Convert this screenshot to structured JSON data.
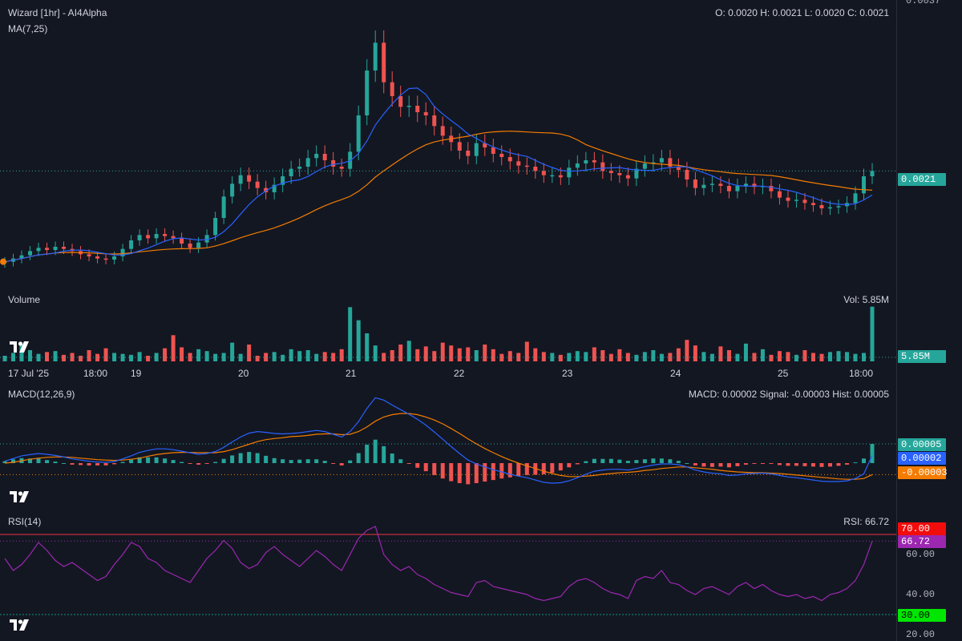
{
  "header": {
    "symbol": "Wizard [1hr] - AI4Alpha",
    "ma_label": "MA(7,25)",
    "ohlc": "O: 0.0020 H: 0.0021 L: 0.0020 C: 0.0021",
    "top_tick": "0.0037"
  },
  "price_panel": {
    "last_price_label": "0.0021",
    "colors": {
      "up": "#26a69a",
      "down": "#ef5350",
      "ma7": "#2962ff",
      "ma25": "#f57c00"
    }
  },
  "volume_panel": {
    "title": "Volume",
    "vol_text": "Vol: 5.85M",
    "last_label": "5.85M"
  },
  "x_axis": {
    "labels": [
      "17 Jul '25",
      "18:00",
      "19",
      "20",
      "21",
      "22",
      "23",
      "24",
      "25",
      "18:00"
    ]
  },
  "macd_panel": {
    "title": "MACD(12,26,9)",
    "values_text": "MACD: 0.00002 Signal: -0.00003 Hist: 0.00005",
    "badges": {
      "hist": "0.00005",
      "macd": "0.00002",
      "signal": "-0.00003"
    }
  },
  "rsi_panel": {
    "title": "RSI(14)",
    "value_text": "RSI: 66.72",
    "ticks": [
      "60.00",
      "40.00",
      "20.00"
    ],
    "badges": {
      "upper": "70.00",
      "current": "66.72",
      "lower": "30.00"
    }
  },
  "chart_data": [
    {
      "type": "candlestick",
      "title": "Wizard [1hr] - AI4Alpha",
      "x_labels": [
        "17 Jul '25",
        "18:00",
        "19",
        "20",
        "21",
        "22",
        "23",
        "24",
        "25",
        "18:00"
      ],
      "last_price": 0.0021,
      "ohlc_last": {
        "open": 0.002,
        "high": 0.0021,
        "low": 0.002,
        "close": 0.0021
      },
      "indicators": [
        "MA(7)",
        "MA(25)"
      ],
      "close_series": [
        0.00125,
        0.00128,
        0.00131,
        0.00135,
        0.00138,
        0.00136,
        0.00139,
        0.00137,
        0.00135,
        0.00132,
        0.0013,
        0.00128,
        0.00127,
        0.0013,
        0.00137,
        0.00145,
        0.0015,
        0.00147,
        0.00151,
        0.00149,
        0.00147,
        0.00142,
        0.00138,
        0.00143,
        0.0015,
        0.00166,
        0.00186,
        0.00198,
        0.00206,
        0.002,
        0.00194,
        0.0019,
        0.00197,
        0.00205,
        0.00212,
        0.00214,
        0.00222,
        0.00226,
        0.0022,
        0.00214,
        0.00212,
        0.00228,
        0.00262,
        0.00304,
        0.0033,
        0.00293,
        0.0028,
        0.0027,
        0.00271,
        0.00265,
        0.00262,
        0.00252,
        0.00243,
        0.00237,
        0.00229,
        0.00224,
        0.00236,
        0.00232,
        0.00226,
        0.00223,
        0.00219,
        0.00215,
        0.00214,
        0.0021,
        0.00206,
        0.00206,
        0.00204,
        0.00213,
        0.00217,
        0.0022,
        0.00218,
        0.0021,
        0.00208,
        0.00206,
        0.00203,
        0.00212,
        0.00217,
        0.00218,
        0.00222,
        0.00214,
        0.00211,
        0.00202,
        0.00194,
        0.00197,
        0.00198,
        0.00196,
        0.00191,
        0.00196,
        0.00198,
        0.00195,
        0.00196,
        0.00191,
        0.00185,
        0.00182,
        0.00183,
        0.0018,
        0.00178,
        0.00175,
        0.00176,
        0.00177,
        0.0018,
        0.00189,
        0.00205,
        0.0021
      ]
    },
    {
      "type": "bar",
      "title": "Volume",
      "last_value": "5.85M",
      "values_millions": [
        0.6,
        0.9,
        1.8,
        1.2,
        0.8,
        1.0,
        1.1,
        0.7,
        0.9,
        0.6,
        1.2,
        0.8,
        1.4,
        0.9,
        0.8,
        0.7,
        1.0,
        0.6,
        0.9,
        1.4,
        2.8,
        1.5,
        0.9,
        1.3,
        1.1,
        0.8,
        0.9,
        2.0,
        0.8,
        1.8,
        0.6,
        0.9,
        1.0,
        0.7,
        1.3,
        1.1,
        1.2,
        0.8,
        1.0,
        0.9,
        1.3,
        5.8,
        4.4,
        3.0,
        1.7,
        0.9,
        1.2,
        1.8,
        2.2,
        1.3,
        1.6,
        1.1,
        2.0,
        1.7,
        1.4,
        1.5,
        1.2,
        1.8,
        1.3,
        0.8,
        1.1,
        0.9,
        2.1,
        1.4,
        1.0,
        0.9,
        0.7,
        0.9,
        1.1,
        1.0,
        1.5,
        1.2,
        0.8,
        1.3,
        0.9,
        0.7,
        1.0,
        1.2,
        0.8,
        0.9,
        1.4,
        2.3,
        1.7,
        1.0,
        0.8,
        1.6,
        1.2,
        0.8,
        1.9,
        0.9,
        1.3,
        0.7,
        1.1,
        1.0,
        0.7,
        1.2,
        0.9,
        0.8,
        1.0,
        1.1,
        1.0,
        0.8,
        0.9,
        5.85
      ]
    },
    {
      "type": "line",
      "title": "MACD(12,26,9)",
      "last": {
        "macd": 2e-05,
        "signal": -3e-05,
        "hist": 5e-05
      },
      "series": [
        {
          "name": "MACD",
          "values": [
            5e-06,
            1.2e-05,
            1.9e-05,
            2.2e-05,
            2.5e-05,
            2.3e-05,
            2e-05,
            1.6e-05,
            1.1e-05,
            8e-06,
            5e-06,
            3e-06,
            2e-06,
            4e-06,
            1.1e-05,
            1.9e-05,
            2.8e-05,
            3.3e-05,
            3.7e-05,
            3.7e-05,
            3.5e-05,
            3.1e-05,
            2.7e-05,
            2.3e-05,
            2.5e-05,
            3e-05,
            4.1e-05,
            5.5e-05,
            6.8e-05,
            7.8e-05,
            8.2e-05,
            8e-05,
            7.7e-05,
            7.6e-05,
            7.7e-05,
            7.9e-05,
            8.2e-05,
            8.5e-05,
            8.2e-05,
            7.5e-05,
            6.8e-05,
            8.2e-05,
            0.000108,
            0.000142,
            0.00017,
            0.000164,
            0.000151,
            0.000139,
            0.000127,
            0.000114,
            9.9e-05,
            8.1e-05,
            6.2e-05,
            4.3e-05,
            2.5e-05,
            8e-06,
            -2e-06,
            -1e-05,
            -1.7e-05,
            -2.3e-05,
            -2.9e-05,
            -3.4e-05,
            -3.8e-05,
            -4.4e-05,
            -5e-05,
            -5.2e-05,
            -5.1e-05,
            -4.6e-05,
            -3.8e-05,
            -2.9e-05,
            -2.1e-05,
            -1.8e-05,
            -1.6e-05,
            -1.6e-05,
            -1.8e-05,
            -1.4e-05,
            -9e-06,
            -5e-06,
            -2e-06,
            -2e-06,
            -4e-06,
            -1e-05,
            -1.8e-05,
            -2.3e-05,
            -2.6e-05,
            -2.8e-05,
            -3.2e-05,
            -3.1e-05,
            -2.8e-05,
            -2.7e-05,
            -2.6e-05,
            -2.8e-05,
            -3.2e-05,
            -3.6e-05,
            -3.8e-05,
            -4.1e-05,
            -4.4e-05,
            -4.7e-05,
            -4.8e-05,
            -4.8e-05,
            -4.6e-05,
            -4e-05,
            -2.8e-05,
            2e-05
          ]
        },
        {
          "name": "Signal",
          "values": [
            0.0,
            2e-06,
            6e-06,
            1e-05,
            1.3e-05,
            1.5e-05,
            1.6e-05,
            1.6e-05,
            1.5e-05,
            1.3e-05,
            1.1e-05,
            9e-06,
            8e-06,
            7e-06,
            8e-06,
            1e-05,
            1.3e-05,
            1.8e-05,
            2.2e-05,
            2.5e-05,
            2.7e-05,
            2.8e-05,
            2.8e-05,
            2.7e-05,
            2.7e-05,
            2.7e-05,
            3e-05,
            3.5e-05,
            4.2e-05,
            4.9e-05,
            5.6e-05,
            6.1e-05,
            6.4e-05,
            6.6e-05,
            6.9e-05,
            7e-05,
            7.2e-05,
            7.5e-05,
            7.6e-05,
            7.6e-05,
            7.4e-05,
            7.5e-05,
            8.2e-05,
            9.4e-05,
            0.000109,
            0.00012,
            0.000126,
            0.000129,
            0.000129,
            0.000126,
            0.00012,
            0.000112,
            0.000102,
            9e-05,
            7.7e-05,
            6.3e-05,
            5e-05,
            3.8e-05,
            2.7e-05,
            1.7e-05,
            8e-06,
            0.0,
            -7e-06,
            -1.4e-05,
            -2.1e-05,
            -2.7e-05,
            -3.2e-05,
            -3.5e-05,
            -3.5e-05,
            -3.4e-05,
            -3.2e-05,
            -2.9e-05,
            -2.7e-05,
            -2.5e-05,
            -2.4e-05,
            -2.2e-05,
            -1.9e-05,
            -1.7e-05,
            -1.4e-05,
            -1.2e-05,
            -1e-05,
            -1e-05,
            -1.2e-05,
            -1.4e-05,
            -1.6e-05,
            -1.9e-05,
            -2.1e-05,
            -2.3e-05,
            -2.4e-05,
            -2.5e-05,
            -2.5e-05,
            -2.6e-05,
            -2.7e-05,
            -2.9e-05,
            -3.1e-05,
            -3.3e-05,
            -3.5e-05,
            -3.7e-05,
            -3.9e-05,
            -4.1e-05,
            -4.2e-05,
            -4.2e-05,
            -4e-05,
            -3e-05
          ]
        }
      ]
    },
    {
      "type": "line",
      "title": "RSI(14)",
      "last_value": 66.72,
      "upper_band": 70,
      "lower_band": 30,
      "ylim": [
        20,
        80
      ],
      "values": [
        58,
        52,
        55,
        60,
        66,
        62,
        57,
        54,
        56,
        53,
        50,
        47,
        49,
        55,
        60,
        66,
        64,
        58,
        56,
        52,
        50,
        48,
        46,
        52,
        58,
        62,
        67,
        63,
        56,
        53,
        55,
        61,
        64,
        60,
        57,
        54,
        58,
        62,
        59,
        55,
        52,
        60,
        68,
        72,
        74,
        60,
        55,
        52,
        54,
        50,
        48,
        45,
        43,
        41,
        40,
        39,
        46,
        47,
        44,
        43,
        42,
        41,
        40,
        38,
        37,
        38,
        39,
        44,
        47,
        48,
        46,
        43,
        41,
        40,
        38,
        47,
        49,
        48,
        52,
        46,
        45,
        42,
        40,
        43,
        44,
        42,
        40,
        44,
        46,
        43,
        45,
        42,
        40,
        39,
        40,
        38,
        39,
        37,
        40,
        41,
        43,
        47,
        55,
        66.72
      ]
    }
  ]
}
